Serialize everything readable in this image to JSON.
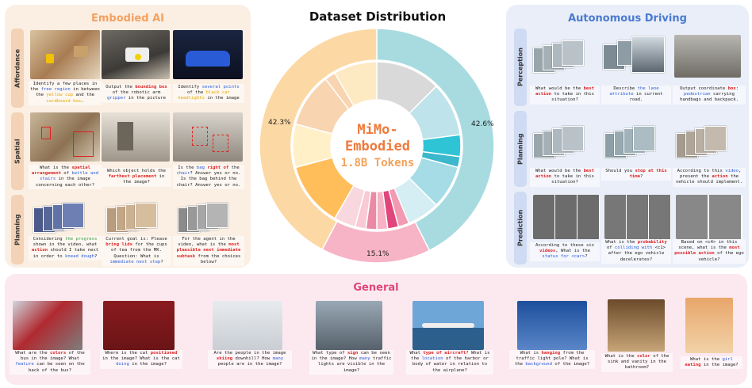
{
  "center": {
    "title": "Dataset Distribution",
    "name_line1": "MiMo-",
    "name_line2": "Embodied",
    "tokens": "1.8B Tokens",
    "pct_left": "42.3%",
    "pct_right": "42.6%",
    "pct_bottom": "15.1%"
  },
  "chart_data": {
    "type": "pie",
    "outer_ring": [
      {
        "name": "Autonomous Driving",
        "value": 42.6,
        "color": "#a8dbe0"
      },
      {
        "name": "General",
        "value": 15.1,
        "color": "#f7b4c6"
      },
      {
        "name": "Embodied AI",
        "value": 42.3,
        "color": "#fcd9a4"
      }
    ],
    "inner_ring_colors": [
      "#d9d9d9",
      "#bfe3ea",
      "#2ec4d6",
      "#3bb8cc",
      "#a5dce6",
      "#d4eef3",
      "#f29ab2",
      "#e0457b",
      "#f5b3c5",
      "#eb8aa6",
      "#f9cad6",
      "#f8d7de",
      "#ffbe5a",
      "#fff0c8",
      "#f8d4b0",
      "#f8d4b0",
      "#fde9c2"
    ]
  },
  "embodied": {
    "title": "Embodied AI",
    "title_color": "#f4a261",
    "rows": [
      "Affordance",
      "Spatial",
      "Planning"
    ],
    "captions": [
      {
        "before": "Identify a few places in the ",
        "h1": "free region",
        "mid": " in between the ",
        "h2": "yellow cup",
        "mid2": " and the ",
        "h3": "cardboard box",
        "after": "."
      },
      {
        "before": "Output the ",
        "h1": "bounding box",
        "mid": " of the robotic arm ",
        "h2": "gripper",
        "after": " in the picture"
      },
      {
        "before": "Identify ",
        "h1": "several points",
        "mid": " of the ",
        "h2": "black car headlights",
        "after": " in the image"
      },
      {
        "before": "What is the ",
        "h1": "spatial arrangement",
        "mid": " of ",
        "h2": "kettle and stairs",
        "after": " in the image concerning each other?"
      },
      {
        "before": "Which object holds the ",
        "h1": "farthest placement",
        "after": " in the image?"
      },
      {
        "before": "Is the ",
        "h1": "bag",
        "mid": " ",
        "h2": "right of",
        "mid2": " the ",
        "h3": "chair",
        "after": "? Answer yes or no. Is the bag behind the chair? Answer yes or no."
      },
      {
        "before": "Considering ",
        "h1": "the progress",
        "mid": " shown in the video, what ",
        "h2": "action",
        "mid2": " should I take next in order to ",
        "h3": "knead dough",
        "after": "?"
      },
      {
        "before": "Current goal is: Please ",
        "h1": "bring lids",
        "mid": " for the cups of tea from the MK. Question: What is ",
        "h2": "immediate next step",
        "after": "?"
      },
      {
        "before": "For the agent in the video, what is the ",
        "h1": "most plausible next immediate subtask",
        "after": " from the choices below?"
      }
    ]
  },
  "autonomous": {
    "title": "Autonomous Driving",
    "title_color": "#4a7bd0",
    "rows": [
      "Perception",
      "Planning",
      "Prediction"
    ],
    "captions": [
      {
        "before": "What would be the ",
        "h1": "best action",
        "after": " to take in this situation?"
      },
      {
        "before": "Describe ",
        "h1": "the lane attribute",
        "after": " in current road."
      },
      {
        "before": "Output coordinate ",
        "h1": "box",
        "mid": ": ",
        "h2": "pedestrian",
        "after": " carrying handbags and backpack."
      },
      {
        "before": "What would be the ",
        "h1": "best action",
        "after": " to take in this situation?"
      },
      {
        "before": "Should you ",
        "h1": "stop at this time",
        "after": "?"
      },
      {
        "before": "According to this ",
        "h1": "video",
        "mid": ", present the ",
        "h2": "action",
        "after": " the vehicle should implement."
      },
      {
        "before": "According to these six ",
        "h1": "videos",
        "mid": ", What is the ",
        "h2": "status for <car>",
        "after": "?"
      },
      {
        "before": "What is the ",
        "h1": "probability",
        "mid": " of ",
        "h2": "colliding with",
        "after": " <c1> after the ego vehicle decelerates?"
      },
      {
        "before": "Based on <c4> in this scene, what is the ",
        "h1": "most possible action",
        "after": " of the ego vehicle?"
      }
    ]
  },
  "general": {
    "title": "General",
    "title_color": "#e0457b",
    "captions": [
      {
        "before": "What are the ",
        "h1": "colors",
        "mid": " of the bus in the image? What ",
        "h2": "feature",
        "after": " can be seen on the back of the bus?"
      },
      {
        "before": "Where is the cat ",
        "h1": "positioned",
        "mid": " in the image? What is the cat ",
        "h2": "doing",
        "after": " in the image?"
      },
      {
        "before": "Are the people in the image ",
        "h1": "skiing",
        "mid": " downhill? How ",
        "h2": "many",
        "after": " people are in the image?"
      },
      {
        "before": "What type of ",
        "h1": "sign",
        "mid": " can be seen in the image? How ",
        "h2": "many",
        "after": " traffic lights are visible in the image?"
      },
      {
        "before": "What ",
        "h1": "type of aircraft",
        "mid": "? What is the ",
        "h2": "location",
        "after": " of the harbor or body of water in relation to the airplane?"
      },
      {
        "before": "What is ",
        "h1": "hanging",
        "mid": " from the traffic light pole? What is the ",
        "h2": "background",
        "after": " of the image?"
      },
      {
        "before": "What is the ",
        "h1": "color",
        "after": " of the sink and vanity in the bathroom?"
      },
      {
        "before": "What is the ",
        "h1": "girl",
        "mid": " ",
        "h2": "eating",
        "after": " in the image?"
      }
    ]
  }
}
